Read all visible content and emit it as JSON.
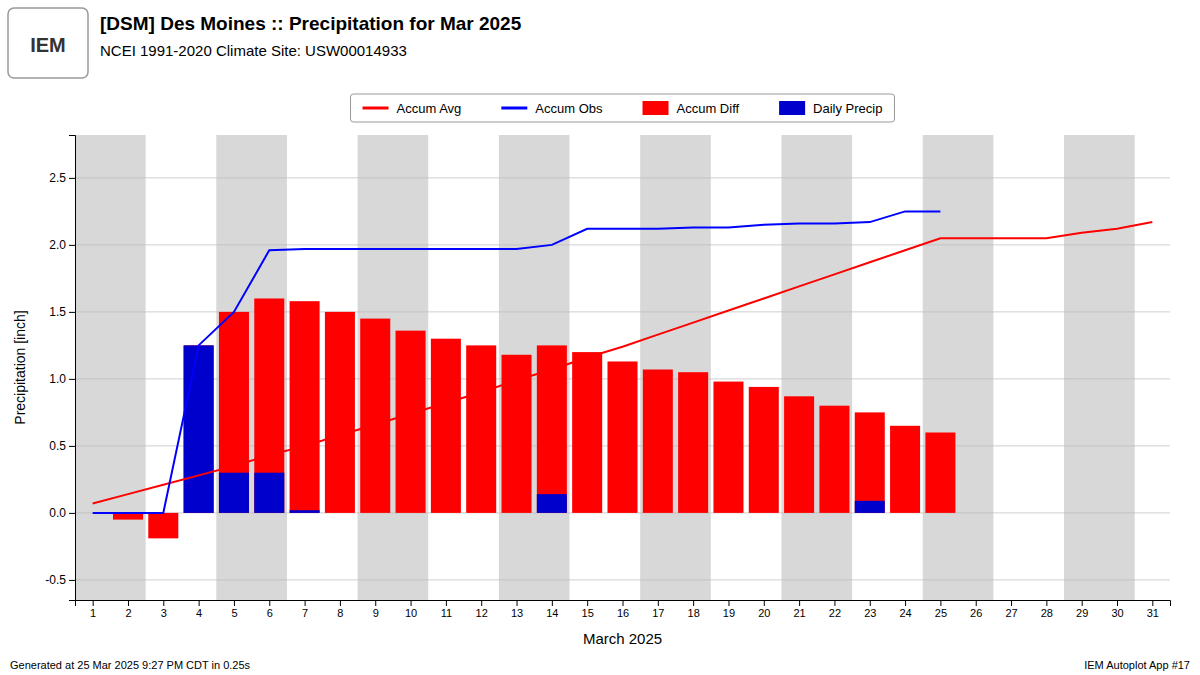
{
  "chart_data": {
    "type": "bar",
    "title": "[DSM] Des Moines :: Precipitation for Mar 2025",
    "subtitle": "NCEI 1991-2020 Climate Site: USW00014933",
    "x_label": "March 2025",
    "y_label": "Precipitation [inch]",
    "annotations": [
      "IEM",
      "Generated at 25 Mar 2025 9:27 PM CDT in 0.25s",
      "IEM Autoplot App #17"
    ],
    "x": [
      1,
      2,
      3,
      4,
      5,
      6,
      7,
      8,
      9,
      10,
      11,
      12,
      13,
      14,
      15,
      16,
      17,
      18,
      19,
      20,
      21,
      22,
      23,
      24,
      25,
      26,
      27,
      28,
      29,
      30,
      31
    ],
    "series": [
      {
        "name": "Accum Avg",
        "type": "line",
        "color": "#ff0000",
        "values": [
          0.07,
          0.14,
          0.21,
          0.28,
          0.35,
          0.43,
          0.5,
          0.58,
          0.66,
          0.74,
          0.82,
          0.9,
          0.99,
          1.07,
          1.16,
          1.24,
          1.33,
          1.42,
          1.51,
          1.6,
          1.69,
          1.78,
          1.87,
          1.96,
          2.05,
          2.05,
          2.05,
          2.05,
          2.09,
          2.12,
          2.17
        ]
      },
      {
        "name": "Accum Obs",
        "type": "line",
        "color": "#0000ff",
        "values": [
          0.0,
          0.0,
          0.0,
          1.25,
          1.5,
          1.96,
          1.97,
          1.97,
          1.97,
          1.97,
          1.97,
          1.97,
          1.97,
          2.0,
          2.12,
          2.12,
          2.12,
          2.13,
          2.13,
          2.15,
          2.16,
          2.16,
          2.17,
          2.25,
          2.25,
          null,
          null,
          null,
          null,
          null,
          null
        ]
      },
      {
        "name": "Accum Diff",
        "type": "bar",
        "color": "#ff0000",
        "values": [
          0.0,
          -0.05,
          -0.19,
          1.25,
          1.5,
          1.6,
          1.58,
          1.5,
          1.45,
          1.36,
          1.3,
          1.25,
          1.18,
          1.25,
          1.2,
          1.13,
          1.07,
          1.05,
          0.98,
          0.94,
          0.87,
          0.8,
          0.75,
          0.65,
          0.6,
          null,
          null,
          null,
          null,
          null,
          null
        ]
      },
      {
        "name": "Daily Precip",
        "type": "bar",
        "color": "#0000cc",
        "values": [
          0.0,
          0.0,
          0.0,
          1.25,
          0.3,
          0.3,
          0.02,
          0.0,
          0.0,
          0.0,
          0.0,
          0.0,
          0.0,
          0.14,
          0.0,
          0.0,
          0.0,
          0.0,
          0.0,
          0.0,
          0.0,
          0.0,
          0.09,
          0.0,
          0.0,
          0.0,
          0.0,
          0.0,
          0.0,
          0.0,
          0.0
        ]
      }
    ],
    "shade_bands": {
      "ranges": [
        [
          0.5,
          2.5
        ],
        [
          4.5,
          6.5
        ],
        [
          8.5,
          10.5
        ],
        [
          12.5,
          14.5
        ],
        [
          16.5,
          18.5
        ],
        [
          20.5,
          22.5
        ],
        [
          24.5,
          26.5
        ],
        [
          28.5,
          30.5
        ]
      ],
      "color": "#d8d8d8"
    },
    "xlim": [
      0.5,
      31.5
    ],
    "xticks": [
      1,
      2,
      3,
      4,
      5,
      6,
      7,
      8,
      9,
      10,
      11,
      12,
      13,
      14,
      15,
      16,
      17,
      18,
      19,
      20,
      21,
      22,
      23,
      24,
      25,
      26,
      27,
      28,
      29,
      30,
      31
    ],
    "ylim": [
      -0.65,
      2.82
    ],
    "yticks": [
      -0.5,
      {
        "value": 0.0,
        "label": "0.0"
      },
      0.5,
      {
        "value": 1.0,
        "label": "1.0"
      },
      1.5,
      {
        "value": 2.0,
        "label": "2.0"
      },
      2.5
    ],
    "grid": true,
    "legend": "top"
  }
}
